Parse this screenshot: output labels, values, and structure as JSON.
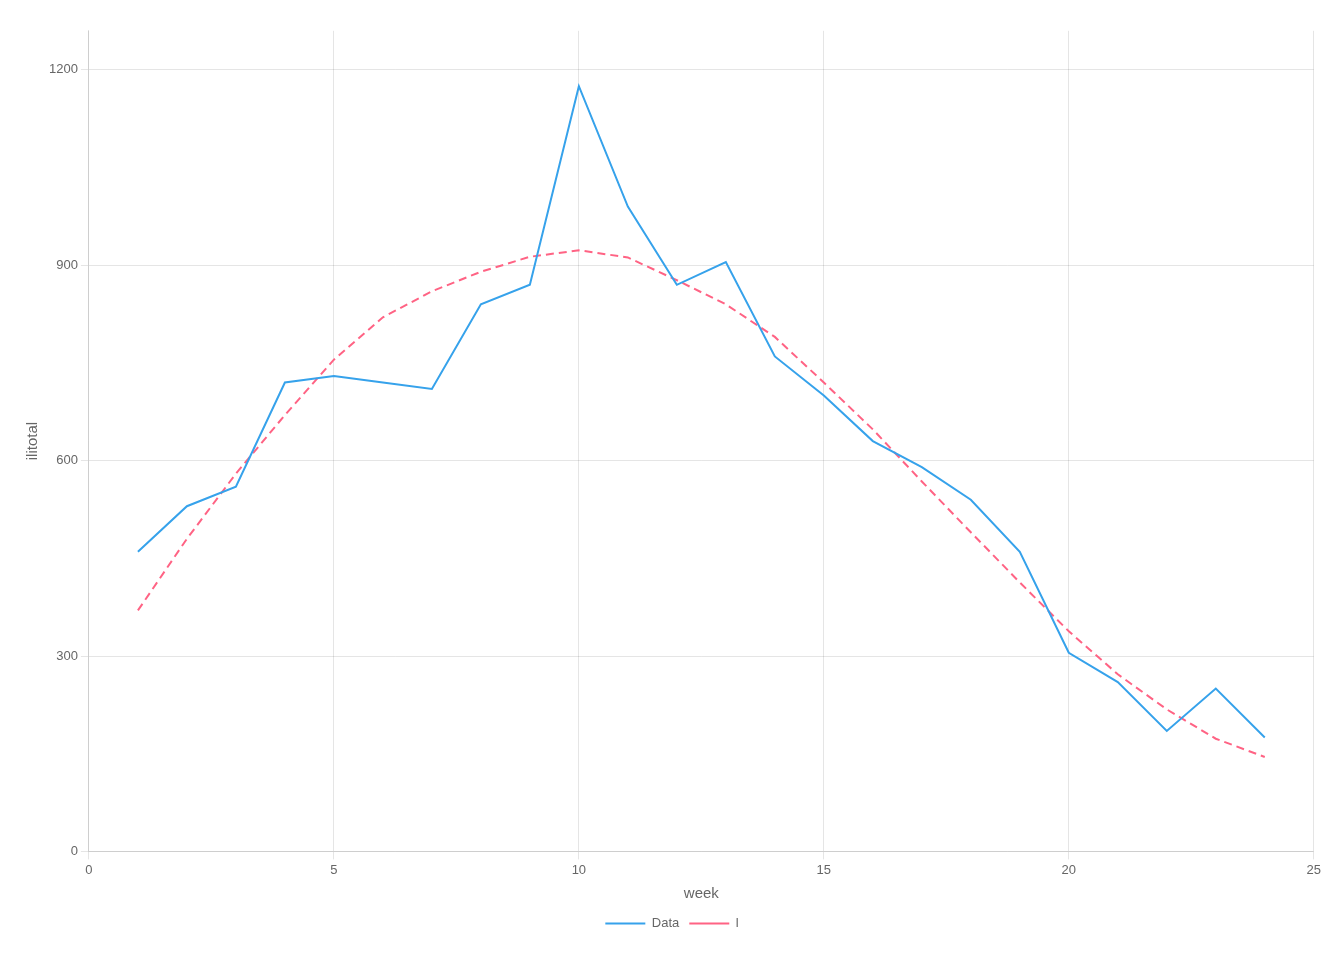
{
  "chart_data": {
    "type": "line",
    "xlabel": "week",
    "ylabel": "ilitotal",
    "x": [
      1,
      2,
      3,
      4,
      5,
      6,
      7,
      8,
      9,
      10,
      11,
      12,
      13,
      14,
      15,
      16,
      17,
      18,
      19,
      20,
      21,
      22,
      23,
      24
    ],
    "series": [
      {
        "name": "Data",
        "line_style": "solid",
        "values": [
          460,
          530,
          560,
          720,
          730,
          720,
          710,
          840,
          870,
          1175,
          990,
          870,
          905,
          760,
          700,
          630,
          590,
          540,
          460,
          305,
          260,
          185,
          250,
          175
        ]
      },
      {
        "name": "l",
        "line_style": "dashed",
        "values": [
          370,
          480,
          580,
          670,
          755,
          820,
          860,
          890,
          913,
          923,
          912,
          877,
          840,
          790,
          720,
          648,
          568,
          490,
          413,
          338,
          272,
          218,
          173,
          145
        ]
      }
    ],
    "xlim": [
      0,
      25
    ],
    "ylim": [
      0,
      1260
    ],
    "xticks": [
      0,
      5,
      10,
      15,
      20,
      25
    ],
    "yticks": [
      0,
      300,
      600,
      900,
      1200
    ],
    "grid": true,
    "legend": "bottom"
  }
}
